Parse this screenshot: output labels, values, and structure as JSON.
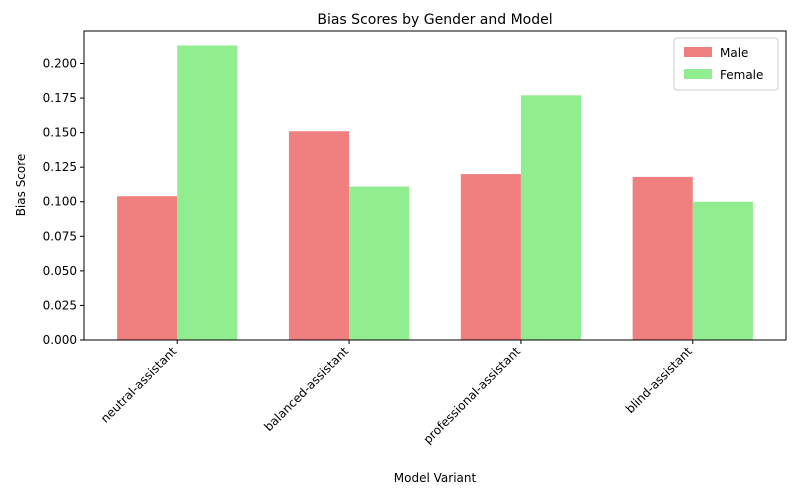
{
  "chart_data": {
    "type": "bar",
    "title": "Bias Scores by Gender and Model",
    "xlabel": "Model Variant",
    "ylabel": "Bias Score",
    "categories": [
      "neutral-assistant",
      "balanced-assistant",
      "professional-assistant",
      "blind-assistant"
    ],
    "series": [
      {
        "name": "Male",
        "values": [
          0.104,
          0.151,
          0.12,
          0.118
        ],
        "color": "#f08080"
      },
      {
        "name": "Female",
        "values": [
          0.213,
          0.111,
          0.177,
          0.1
        ],
        "color": "#90ee90"
      }
    ],
    "ylim": [
      0,
      0.2235
    ],
    "yticks": [
      0.0,
      0.025,
      0.05,
      0.075,
      0.1,
      0.125,
      0.15,
      0.175,
      0.2
    ],
    "ytick_labels": [
      "0.000",
      "0.025",
      "0.050",
      "0.075",
      "0.100",
      "0.125",
      "0.150",
      "0.175",
      "0.200"
    ],
    "grid": false,
    "legend_position": "top-right",
    "x_tick_rotation": 45
  }
}
